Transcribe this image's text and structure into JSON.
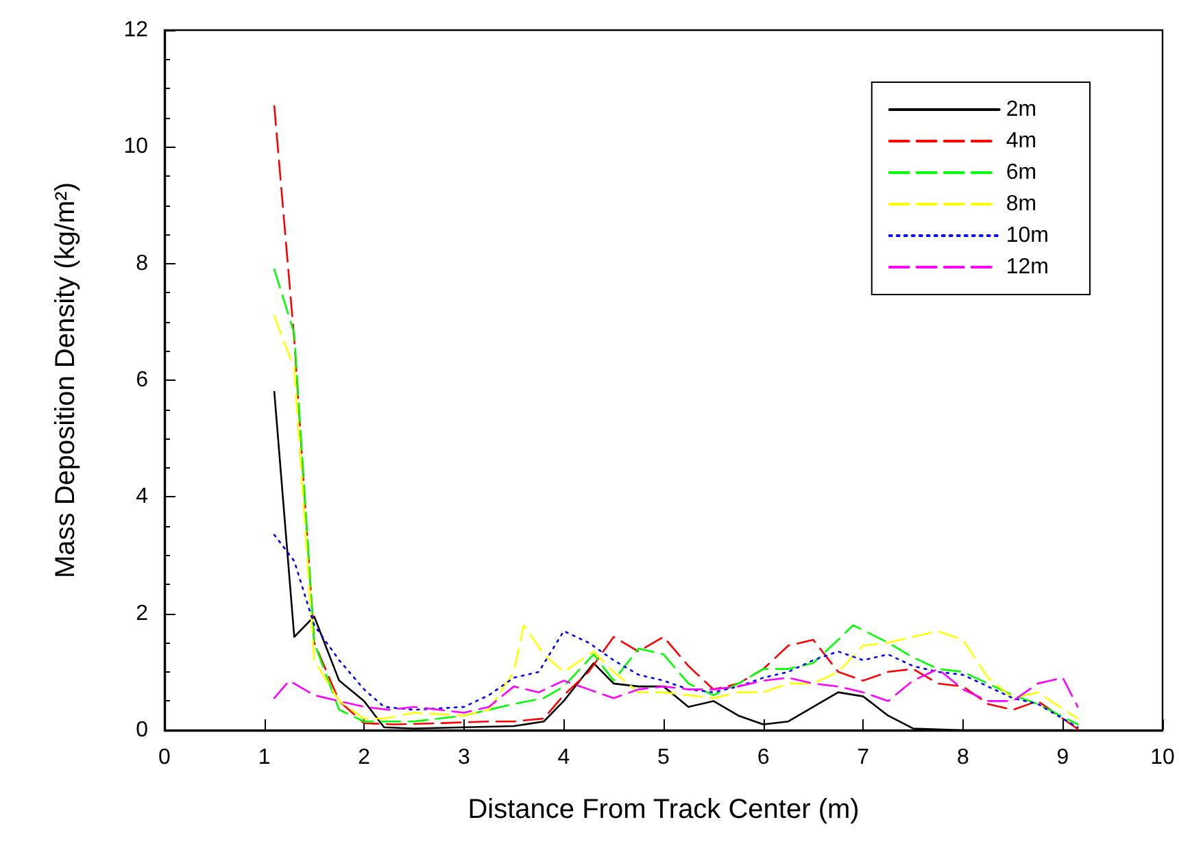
{
  "chart_data": {
    "type": "line",
    "xlabel": "Distance From Track Center (m)",
    "ylabel": "Mass Deposition Density (kg/m²)",
    "xlim": [
      0,
      10
    ],
    "xticks": [
      0,
      1,
      2,
      3,
      4,
      5,
      6,
      7,
      8,
      9,
      10
    ],
    "ylim": [
      0,
      12
    ],
    "yticks": [
      0,
      2,
      4,
      6,
      8,
      10,
      12
    ],
    "grid": false,
    "legend": "top right",
    "marker": "none",
    "series": [
      {
        "name": "2m",
        "color": "#000000",
        "line_style": "solid",
        "x": [
          1.1,
          1.3,
          1.5,
          1.75,
          2.0,
          2.2,
          2.5,
          3.0,
          3.5,
          3.8,
          4.0,
          4.3,
          4.5,
          4.75,
          5.0,
          5.25,
          5.5,
          5.75,
          6.0,
          6.25,
          6.5,
          6.75,
          7.0,
          7.25,
          7.5,
          8.0,
          9.1
        ],
        "values": [
          5.8,
          1.6,
          1.95,
          0.85,
          0.5,
          0.05,
          0.03,
          0.05,
          0.07,
          0.15,
          0.5,
          1.15,
          0.8,
          0.75,
          0.75,
          0.4,
          0.5,
          0.25,
          0.1,
          0.15,
          0.4,
          0.65,
          0.58,
          0.25,
          0.03,
          0.0,
          0.0
        ]
      },
      {
        "name": "4m",
        "color": "#ff0000",
        "line_style": "dashed",
        "x": [
          1.1,
          1.3,
          1.5,
          1.75,
          2.0,
          2.3,
          2.75,
          3.25,
          3.5,
          3.8,
          4.0,
          4.25,
          4.5,
          4.75,
          5.0,
          5.25,
          5.5,
          5.75,
          6.0,
          6.25,
          6.5,
          6.75,
          7.0,
          7.25,
          7.5,
          7.75,
          8.0,
          8.25,
          8.5,
          8.75,
          9.15
        ],
        "values": [
          10.7,
          6.7,
          1.5,
          0.5,
          0.12,
          0.1,
          0.12,
          0.15,
          0.15,
          0.2,
          0.6,
          1.0,
          1.6,
          1.35,
          1.6,
          1.1,
          0.7,
          0.8,
          1.05,
          1.45,
          1.55,
          1.0,
          0.85,
          1.0,
          1.05,
          0.8,
          0.75,
          0.45,
          0.35,
          0.5,
          0.02
        ]
      },
      {
        "name": "6m",
        "color": "#00ff00",
        "line_style": "dashed",
        "x": [
          1.1,
          1.3,
          1.5,
          1.75,
          2.0,
          2.5,
          3.0,
          3.5,
          3.8,
          4.0,
          4.3,
          4.5,
          4.75,
          5.0,
          5.25,
          5.5,
          5.75,
          6.0,
          6.25,
          6.5,
          6.75,
          6.9,
          7.25,
          7.5,
          7.75,
          8.0,
          8.25,
          8.5,
          8.75,
          9.15
        ],
        "values": [
          7.9,
          6.8,
          1.5,
          0.35,
          0.15,
          0.15,
          0.25,
          0.45,
          0.55,
          0.75,
          1.3,
          0.85,
          1.4,
          1.3,
          0.8,
          0.6,
          0.8,
          1.05,
          1.05,
          1.15,
          1.55,
          1.8,
          1.5,
          1.25,
          1.05,
          1.0,
          0.8,
          0.6,
          0.45,
          0.1
        ]
      },
      {
        "name": "8m",
        "color": "#ffff00",
        "line_style": "dashed",
        "x": [
          1.1,
          1.3,
          1.5,
          1.75,
          2.0,
          2.2,
          2.5,
          3.0,
          3.25,
          3.5,
          3.6,
          3.8,
          4.0,
          4.3,
          4.5,
          4.75,
          5.0,
          5.25,
          5.5,
          5.75,
          6.0,
          6.25,
          6.5,
          6.75,
          7.0,
          7.25,
          7.5,
          7.75,
          8.0,
          8.25,
          8.5,
          8.75,
          9.15
        ],
        "values": [
          7.1,
          6.2,
          1.2,
          0.5,
          0.2,
          0.2,
          0.3,
          0.25,
          0.35,
          1.0,
          1.8,
          1.3,
          1.0,
          1.35,
          1.0,
          0.65,
          0.65,
          0.6,
          0.55,
          0.65,
          0.65,
          0.8,
          0.8,
          1.0,
          1.45,
          1.5,
          1.6,
          1.7,
          1.55,
          0.9,
          0.55,
          0.65,
          0.2
        ]
      },
      {
        "name": "10m",
        "color": "#0000ff",
        "line_style": "dotted",
        "x": [
          1.1,
          1.3,
          1.5,
          1.75,
          2.0,
          2.2,
          2.5,
          3.0,
          3.25,
          3.5,
          3.75,
          4.0,
          4.25,
          4.5,
          4.75,
          5.0,
          5.25,
          5.5,
          5.75,
          6.0,
          6.25,
          6.5,
          6.75,
          7.0,
          7.25,
          7.5,
          7.75,
          8.0,
          8.25,
          8.5,
          8.75,
          9.15
        ],
        "values": [
          3.35,
          2.9,
          1.8,
          1.2,
          0.7,
          0.4,
          0.35,
          0.4,
          0.6,
          0.9,
          1.0,
          1.7,
          1.5,
          1.2,
          0.95,
          0.85,
          0.7,
          0.65,
          0.75,
          0.9,
          1.0,
          1.2,
          1.35,
          1.2,
          1.3,
          1.1,
          1.0,
          0.95,
          0.75,
          0.55,
          0.45,
          0.05
        ]
      },
      {
        "name": "12m",
        "color": "#ff00ff",
        "line_style": "dashed",
        "x": [
          1.1,
          1.25,
          1.5,
          1.75,
          2.0,
          2.25,
          2.5,
          3.0,
          3.25,
          3.5,
          3.75,
          4.0,
          4.25,
          4.5,
          4.75,
          5.0,
          5.25,
          5.5,
          5.75,
          6.0,
          6.25,
          6.5,
          6.75,
          7.0,
          7.25,
          7.5,
          7.75,
          8.0,
          8.25,
          8.5,
          8.75,
          9.0,
          9.15
        ],
        "values": [
          0.55,
          0.85,
          0.6,
          0.5,
          0.4,
          0.35,
          0.4,
          0.3,
          0.4,
          0.75,
          0.65,
          0.85,
          0.7,
          0.55,
          0.7,
          0.75,
          0.7,
          0.7,
          0.75,
          0.85,
          0.9,
          0.8,
          0.75,
          0.65,
          0.5,
          0.85,
          1.05,
          0.7,
          0.5,
          0.5,
          0.8,
          0.9,
          0.4
        ]
      }
    ]
  }
}
